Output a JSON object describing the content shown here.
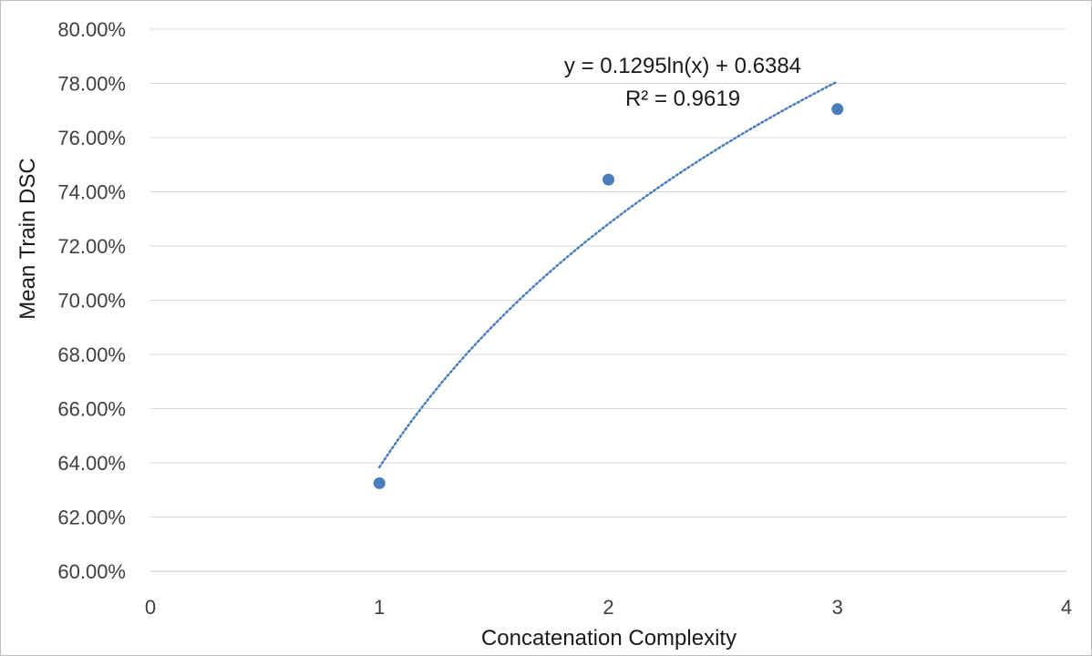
{
  "chart_data": {
    "type": "scatter",
    "title": "",
    "xlabel": "Concatenation Complexity",
    "ylabel": "Mean Train DSC",
    "xlim": [
      0,
      4
    ],
    "ylim": [
      0.6,
      0.8
    ],
    "x_ticks": [
      "0",
      "1",
      "2",
      "3",
      "4"
    ],
    "y_ticks": [
      "60.00%",
      "62.00%",
      "64.00%",
      "66.00%",
      "68.00%",
      "70.00%",
      "72.00%",
      "74.00%",
      "76.00%",
      "78.00%",
      "80.00%"
    ],
    "grid": "horizontal",
    "series": [
      {
        "x": [
          1,
          2,
          3
        ],
        "y": [
          0.6325,
          0.7445,
          0.7705
        ],
        "color": "#4a7ebb"
      }
    ],
    "trendline": {
      "type": "logarithmic",
      "a": 0.1295,
      "b": 0.6384,
      "x_range": [
        1,
        3
      ],
      "style": "dotted",
      "color": "#4a7ebb",
      "equation": "y = 0.1295ln(x) + 0.6384",
      "r_squared": "R² = 0.9619"
    }
  }
}
